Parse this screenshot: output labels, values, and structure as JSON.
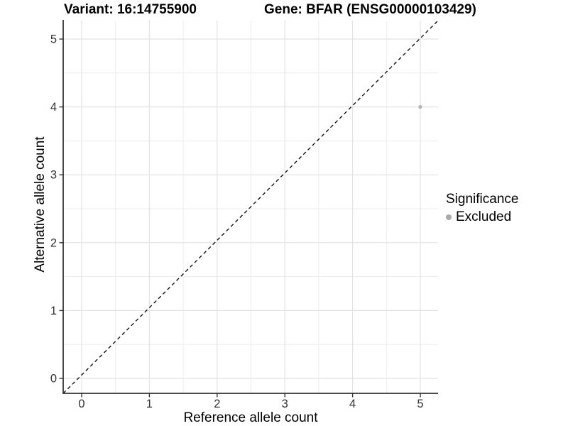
{
  "titles": {
    "left": "Variant: 16:14755900",
    "right": "Gene: BFAR (ENSG00000103429)"
  },
  "chart_data": {
    "type": "scatter",
    "title": "Variant: 16:14755900   Gene: BFAR (ENSG00000103429)",
    "xlabel": "Reference allele count",
    "ylabel": "Alternative allele count",
    "xlim": [
      -0.27,
      5.27
    ],
    "ylim": [
      -0.25,
      5.27
    ],
    "xticks": [
      0,
      1,
      2,
      3,
      4,
      5
    ],
    "yticks": [
      0,
      1,
      2,
      3,
      4,
      5
    ],
    "grid": {
      "major_step": 1,
      "minor_step": 0.5,
      "major_color": "#e2e2e2",
      "minor_color": "#ededed"
    },
    "series": [
      {
        "name": "Excluded",
        "color": "#b3b3b3",
        "points": [
          {
            "x": 5,
            "y": 4
          }
        ]
      }
    ],
    "reference_line": {
      "equation": "y = x",
      "style": "dashed",
      "color": "#000000"
    },
    "legend": {
      "title": "Significance",
      "position": "right",
      "entries": [
        {
          "label": "Excluded",
          "color": "#aaaaaa"
        }
      ]
    }
  },
  "colors": {
    "axis": "#333333",
    "tick_text": "#333333",
    "point": "#b3b3b3",
    "legend_key": "#aaaaaa",
    "background": "#ffffff"
  }
}
